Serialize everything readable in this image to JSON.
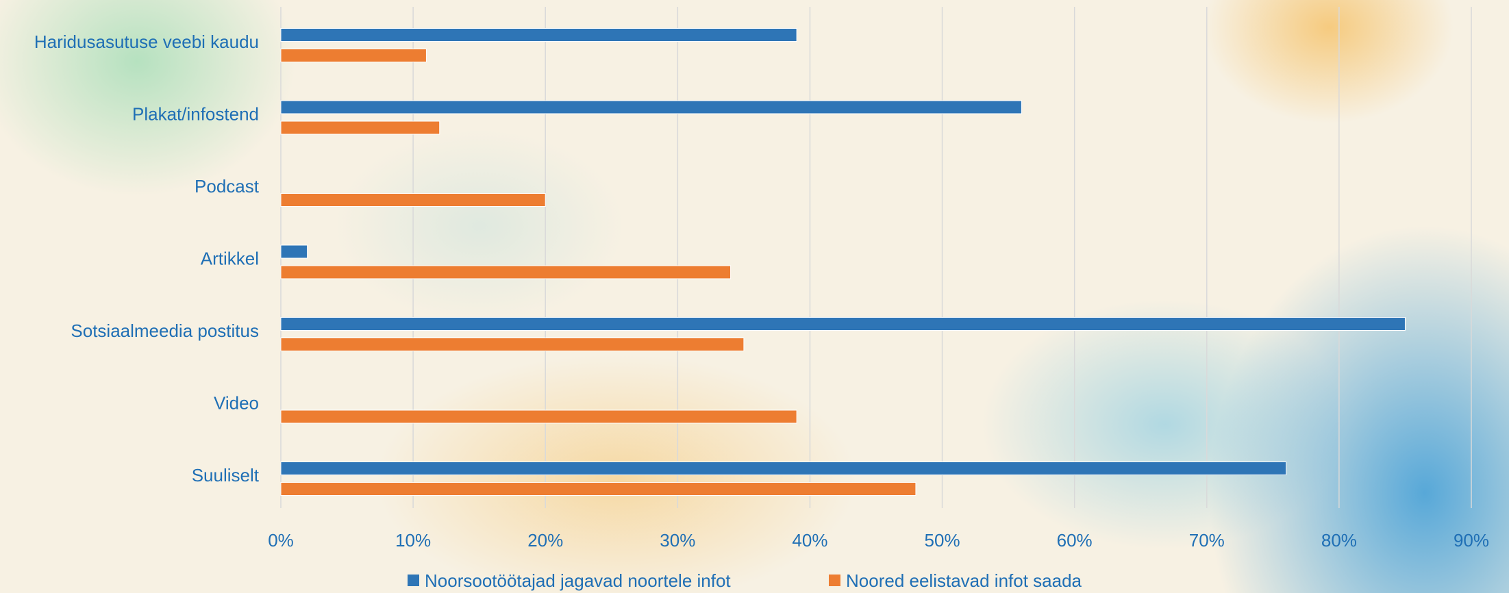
{
  "chart_data": {
    "type": "bar",
    "orientation": "horizontal",
    "categories": [
      "Haridusasutuse veebi kaudu",
      "Plakat/infostend",
      "Podcast",
      "Artikkel",
      "Sotsiaalmeedia postitus",
      "Video",
      "Suuliselt"
    ],
    "series": [
      {
        "name": "Noorsootöötajad jagavad noortele infot",
        "color": "#2e75b6",
        "values": [
          39,
          56,
          0,
          2,
          85,
          0,
          76
        ]
      },
      {
        "name": "Noored eelistavad infot saada",
        "color": "#ed7d31",
        "values": [
          11,
          12,
          20,
          34,
          35,
          39,
          48
        ]
      }
    ],
    "xlim": [
      0,
      90
    ],
    "xticks": [
      "0%",
      "10%",
      "20%",
      "30%",
      "40%",
      "50%",
      "60%",
      "70%",
      "80%",
      "90%"
    ],
    "grid": true,
    "legend_position": "bottom",
    "title": "",
    "xlabel": "",
    "ylabel": ""
  }
}
